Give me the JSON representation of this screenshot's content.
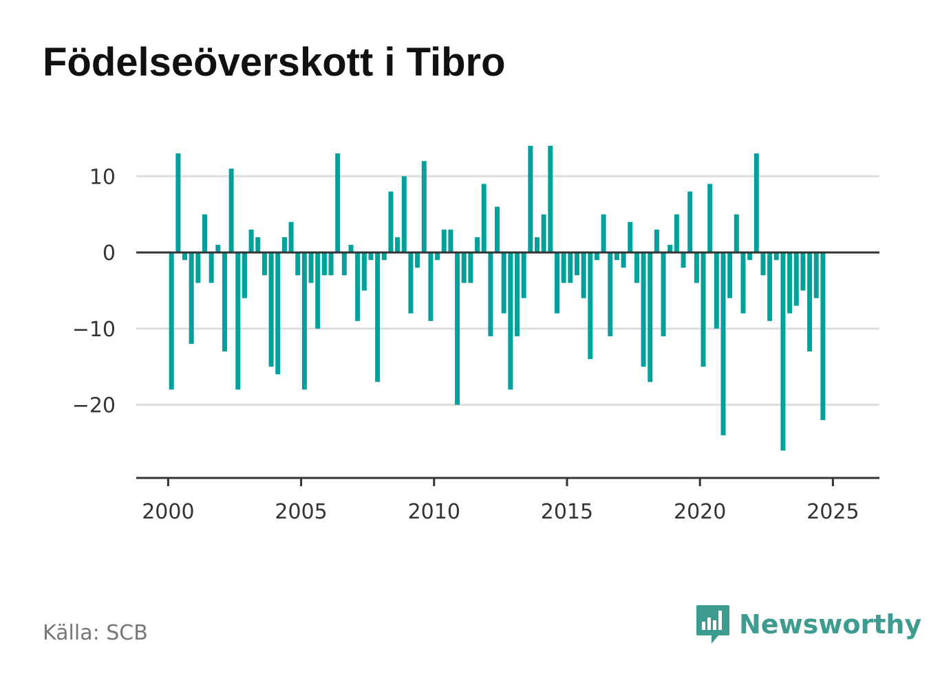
{
  "title": "Födelseöverskott i Tibro",
  "source": "Källa: SCB",
  "brand": {
    "name": "Newsworthy",
    "logo_icon": "bar-chart-speech-bubble-icon"
  },
  "colors": {
    "bar": "#00a19a",
    "brand": "#3e9b8f",
    "grid": "#dddddd",
    "axis": "#333333",
    "text": "#333333"
  },
  "chart_data": {
    "type": "bar",
    "title": "Födelseöverskott i Tibro",
    "xlabel": "",
    "ylabel": "",
    "x_ticks": [
      2000,
      2005,
      2010,
      2015,
      2020,
      2025
    ],
    "y_ticks": [
      10,
      0,
      -10,
      -20
    ],
    "y_tick_labels": [
      "10",
      "0",
      "−10",
      "−20"
    ],
    "xlim": [
      1998.8,
      2026.75
    ],
    "ylim": [
      -29.6,
      14
    ],
    "grid": true,
    "start": 2000.125,
    "step": 0.25,
    "values": [
      -18,
      13,
      -1,
      -12,
      -4,
      5,
      -4,
      1,
      -13,
      11,
      -18,
      -6,
      3,
      2,
      -3,
      -15,
      -16,
      2,
      4,
      -3,
      -18,
      -4,
      -10,
      -3,
      -3,
      13,
      -3,
      1,
      -9,
      -5,
      -1,
      -17,
      -1,
      8,
      2,
      10,
      -8,
      -2,
      12,
      -9,
      -1,
      3,
      3,
      -20,
      -4,
      -4,
      2,
      9,
      -11,
      6,
      -8,
      -18,
      -11,
      -6,
      14,
      2,
      5,
      14,
      -8,
      -4,
      -4,
      -3,
      -6,
      -14,
      -1,
      5,
      -11,
      -1,
      -2,
      4,
      -4,
      -15,
      -17,
      3,
      -11,
      1,
      5,
      -2,
      8,
      -4,
      -15,
      9,
      -10,
      -24,
      -6,
      5,
      -8,
      -1,
      13,
      -3,
      -9,
      -1,
      -26,
      -8,
      -7,
      -5,
      -13,
      -6,
      -22
    ]
  }
}
